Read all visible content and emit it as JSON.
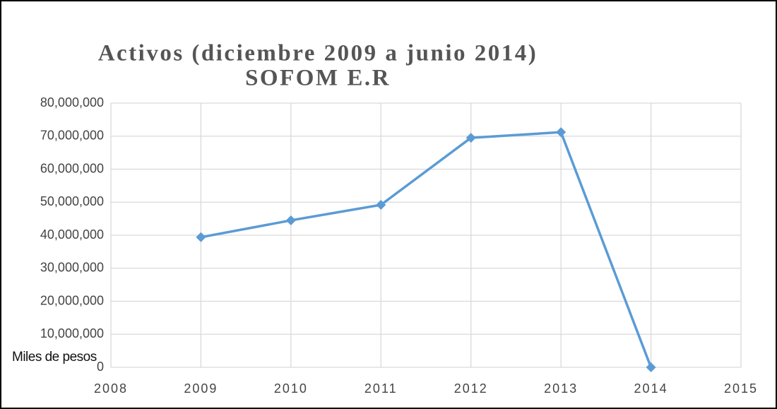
{
  "chart_data": {
    "type": "line",
    "title": [
      "Activos (diciembre 2009 a junio 2014)",
      "SOFOM E.R"
    ],
    "annotation": "Miles de pesos",
    "x": [
      2009,
      2010,
      2011,
      2012,
      2013,
      2014
    ],
    "series": [
      {
        "name": "Activos",
        "color": "#5b9bd5",
        "values": [
          39400000,
          44500000,
          49200000,
          69500000,
          71200000,
          0
        ]
      }
    ],
    "xlim": [
      2008,
      2015
    ],
    "xticks": [
      2008,
      2009,
      2010,
      2011,
      2012,
      2013,
      2014,
      2015
    ],
    "ylim": [
      0,
      80000000
    ],
    "yticks": [
      0,
      {
        "value": 10000000,
        "label": "10,000,000"
      },
      {
        "value": 20000000,
        "label": "20,000,000"
      },
      {
        "value": 30000000,
        "label": "30,000,000"
      },
      {
        "value": 40000000,
        "label": "40,000,000"
      },
      {
        "value": 50000000,
        "label": "50,000,000"
      },
      {
        "value": 60000000,
        "label": "60,000,000"
      },
      {
        "value": 70000000,
        "label": "70,000,000"
      },
      {
        "value": 80000000,
        "label": "80,000,000"
      }
    ],
    "grid": true
  }
}
